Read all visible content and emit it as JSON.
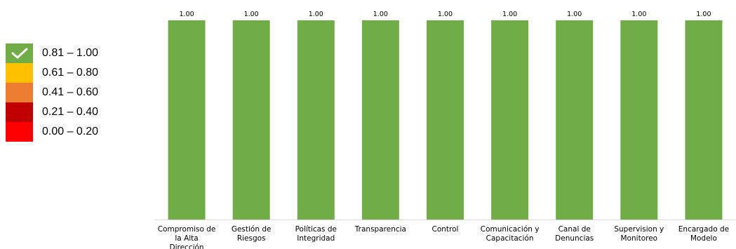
{
  "legend": {
    "items": [
      {
        "label": "0.81 – 1.00",
        "color": "#70ad47",
        "icon": "check-icon"
      },
      {
        "label": "0.61 – 0.80",
        "color": "#ffc000"
      },
      {
        "label": "0.41 – 0.60",
        "color": "#ed7d31"
      },
      {
        "label": "0.21 – 0.40",
        "color": "#c00000"
      },
      {
        "label": "0.00 – 0.20",
        "color": "#ff0000"
      }
    ]
  },
  "chart_data": {
    "type": "bar",
    "title": "",
    "xlabel": "",
    "ylabel": "",
    "ylim": [
      0,
      1
    ],
    "bar_color": "#70ad47",
    "categories": [
      [
        "Compromiso de",
        "la Alta",
        "Dirección"
      ],
      [
        "Gestión de",
        "Riesgos"
      ],
      [
        "Políticas de",
        "Integridad"
      ],
      [
        "Transparencia"
      ],
      [
        "Control"
      ],
      [
        "Comunicación y",
        "Capacitación"
      ],
      [
        "Canal de",
        "Denuncias"
      ],
      [
        "Supervision y",
        "Monitoreo"
      ],
      [
        "Encargado de",
        "Modelo"
      ]
    ],
    "values": [
      1.0,
      1.0,
      1.0,
      1.0,
      1.0,
      1.0,
      1.0,
      1.0,
      1.0
    ],
    "data_labels": [
      "1.00",
      "1.00",
      "1.00",
      "1.00",
      "1.00",
      "1.00",
      "1.00",
      "1.00",
      "1.00"
    ],
    "grid": false,
    "legend_position": "left"
  }
}
